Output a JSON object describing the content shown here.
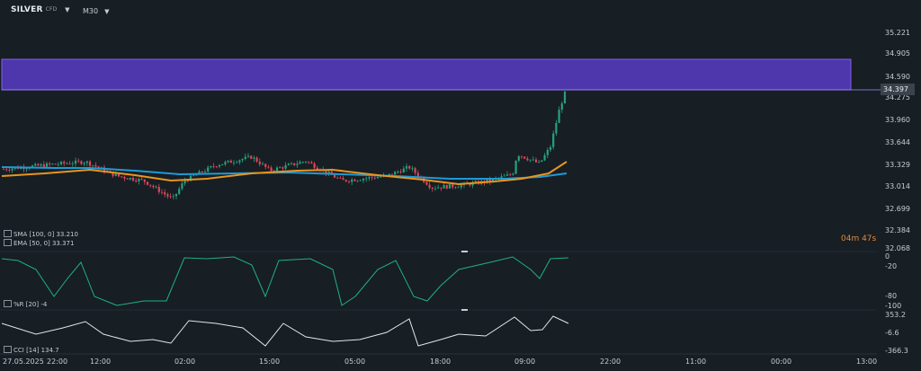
{
  "toolbar": {
    "symbol": "SILVER",
    "symbol_tag": "CFD",
    "timeframe": "M30"
  },
  "price_axis": [
    "35.221",
    "34.905",
    "34.590",
    "34.275",
    "33.960",
    "33.644",
    "33.329",
    "33.014",
    "32.699",
    "32.384",
    "32.068"
  ],
  "current_price": "34.397",
  "countdown": "04m 47s",
  "indicators": {
    "sma": "SMA [100, 0] 33.210",
    "ema": "EMA [50, 0] 33.371",
    "wr": "%R [20] -4",
    "cci": "CCI [14] 134.7"
  },
  "wr_axis": [
    "0",
    "-20",
    "-80",
    "-100"
  ],
  "cci_axis": [
    "353.2",
    "-6.6",
    "-366.3"
  ],
  "time_axis": [
    "27.05.2025",
    "22:00",
    "12:00",
    "02:00",
    "15:00",
    "05:00",
    "18:00",
    "09:00",
    "22:00",
    "11:00",
    "00:00",
    "13:00"
  ],
  "colors": {
    "zone": "#5b3fc4",
    "sma": "#1f9ad6",
    "ema": "#e8951f",
    "bull": "#26a17b",
    "bear": "#e04557",
    "osc": "#1fb184",
    "cci": "#e6e6e6"
  }
}
